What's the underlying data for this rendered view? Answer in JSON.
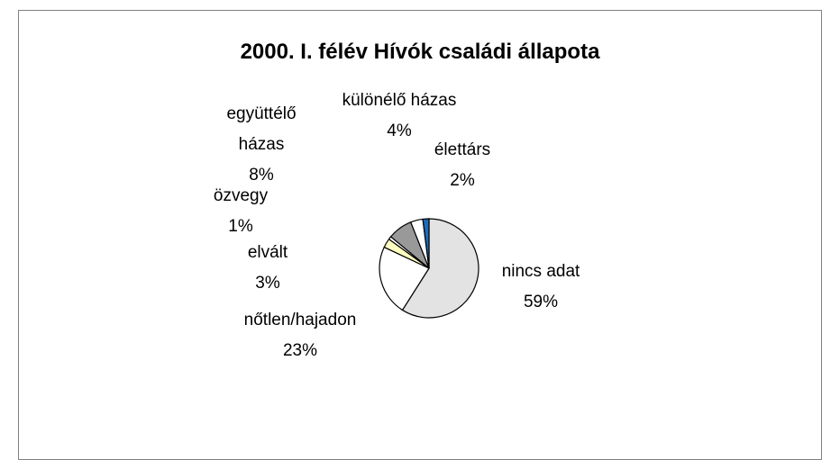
{
  "chart_data": {
    "type": "pie",
    "title": "2000. I. félév Hívók családi állapota",
    "categories": [
      "nincs adat",
      "nőtlen/hajadon",
      "elvált",
      "özvegy",
      "együttélő házas",
      "különélő házas",
      "élettárs"
    ],
    "values": [
      59,
      23,
      3,
      1,
      8,
      4,
      2
    ],
    "value_labels": [
      "59%",
      "23%",
      "3%",
      "1%",
      "8%",
      "4%",
      "2%"
    ],
    "colors": [
      "#e3e3e3",
      "#ffffff",
      "#ffffc0",
      "#ffffff",
      "#999999",
      "#ffffff",
      "#1f6bb8"
    ]
  }
}
